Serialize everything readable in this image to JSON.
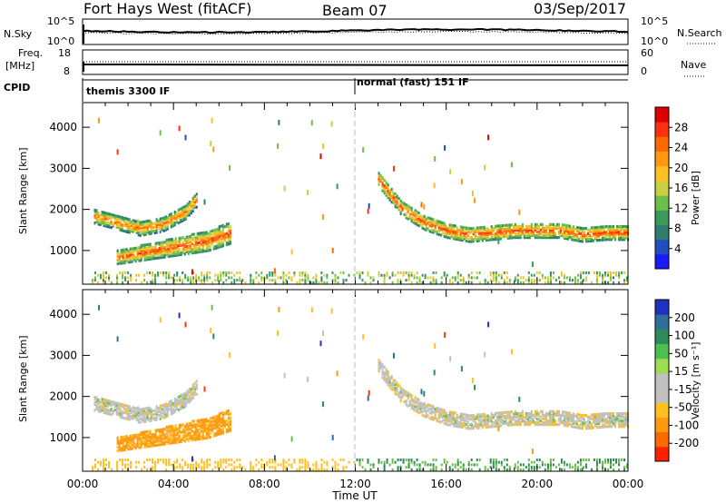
{
  "header": {
    "radar": "Fort Hays West (fitACF)",
    "beam": "Beam 07",
    "date": "03/Sep/2017"
  },
  "strip": {
    "nsky_label": "N.Sky",
    "nsky_ticks": [
      "10^5",
      "10^0"
    ],
    "nsearch_label": "N.Search",
    "nsearch_ticks": [
      "10^5",
      "10^0"
    ],
    "freq_label": "Freq.",
    "freq_unit": "[MHz]",
    "freq_ticks": [
      "18",
      "8"
    ],
    "nave_label": "Nave",
    "nave_ticks": [
      "60",
      "0"
    ],
    "cpid_label": "CPID",
    "cpid_segments": [
      "themis 3300 IF",
      "normal (fast) 151 IF"
    ]
  },
  "chart_data": [
    {
      "type": "heatmap",
      "title": "Power",
      "ylabel": "Slant Range [km]",
      "xlabel": "",
      "ylim": [
        180,
        4600
      ],
      "xlim": [
        0,
        24
      ],
      "y_ticks": [
        "1000",
        "2000",
        "3000",
        "4000"
      ],
      "x_ticks": [
        "00:00",
        "04:00",
        "08:00",
        "12:00",
        "16:00",
        "20:00",
        "00:00"
      ],
      "colorbar": {
        "label": "Power [dB]",
        "ticks": [
          "4",
          "8",
          "12",
          "16",
          "20",
          "24",
          "28"
        ],
        "colors": [
          "#1a1aff",
          "#1f4fbf",
          "#2e7d6e",
          "#3a9a5a",
          "#6cc04a",
          "#c8d040",
          "#ffc020",
          "#ff9a10",
          "#ff6a00",
          "#ff3010",
          "#e00000"
        ]
      },
      "series": [
        {
          "region": "pre-noon upper echo band",
          "x": [
            0.5,
            1.5,
            2.5,
            3.5,
            4.5,
            5.0
          ],
          "y": [
            1850,
            1700,
            1550,
            1650,
            1950,
            2250
          ],
          "value_db": 24
        },
        {
          "region": "pre-noon lower echo band",
          "x": [
            1.5,
            2.5,
            3.5,
            4.5,
            5.5,
            6.5
          ],
          "y": [
            850,
            950,
            1050,
            1150,
            1250,
            1450
          ],
          "value_db": 26
        },
        {
          "region": "post-noon echo band",
          "x": [
            13.0,
            14.0,
            15.0,
            16.0,
            17.0,
            18.0,
            19.0,
            20.0,
            21.0,
            22.0,
            23.0,
            24.0
          ],
          "y": [
            2750,
            2050,
            1700,
            1500,
            1400,
            1450,
            1500,
            1500,
            1500,
            1400,
            1450,
            1450
          ],
          "value_db": 26
        }
      ]
    },
    {
      "type": "heatmap",
      "title": "Velocity",
      "ylabel": "Slant Range [km]",
      "xlabel": "Time UT",
      "ylim": [
        180,
        4600
      ],
      "xlim": [
        0,
        24
      ],
      "y_ticks": [
        "1000",
        "2000",
        "3000",
        "4000"
      ],
      "x_ticks": [
        "00:00",
        "04:00",
        "08:00",
        "12:00",
        "16:00",
        "20:00",
        "00:00"
      ],
      "colorbar": {
        "label": "Velocity [m s⁻¹]",
        "ticks": [
          "200",
          "100",
          "50",
          "15",
          "-15",
          "-50",
          "-100",
          "-200"
        ],
        "colors": [
          "#2030c0",
          "#2f6f9a",
          "#2e8b57",
          "#4fc04f",
          "#9fdc50",
          "#c0c0c0",
          "#c0c0c0",
          "#ffc020",
          "#ff9a10",
          "#ff6a00",
          "#ff2000"
        ]
      },
      "series": [
        {
          "region": "pre-noon upper band",
          "x": [
            0.5,
            1.5,
            2.5,
            3.5,
            4.5,
            5.0
          ],
          "y": [
            1850,
            1700,
            1550,
            1650,
            1950,
            2250
          ],
          "value_ms": 0
        },
        {
          "region": "pre-noon lower band",
          "x": [
            1.5,
            2.5,
            3.5,
            4.5,
            5.5,
            6.5
          ],
          "y": [
            850,
            950,
            1050,
            1150,
            1250,
            1450
          ],
          "value_ms": -60
        },
        {
          "region": "post-noon band",
          "x": [
            13.0,
            14.0,
            15.0,
            16.0,
            17.0,
            18.0,
            19.0,
            20.0,
            21.0,
            22.0,
            23.0,
            24.0
          ],
          "y": [
            2750,
            2050,
            1700,
            1500,
            1400,
            1450,
            1500,
            1500,
            1500,
            1400,
            1450,
            1450
          ],
          "value_ms": 0
        }
      ]
    }
  ]
}
